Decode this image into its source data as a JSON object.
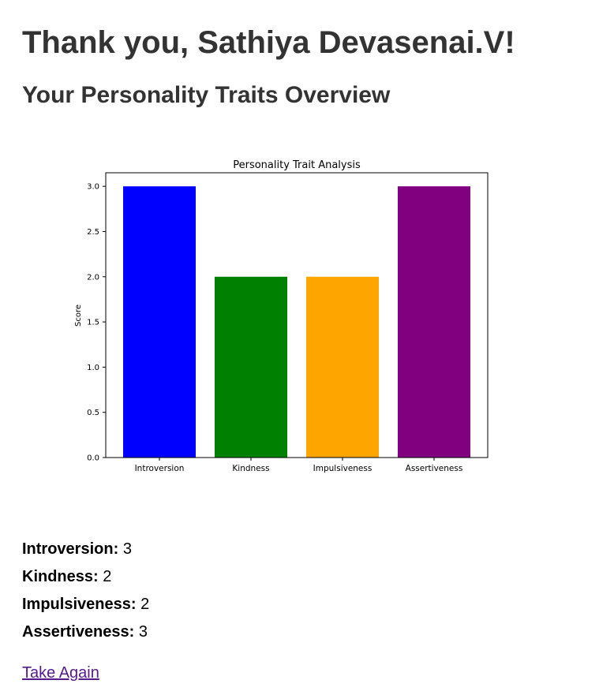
{
  "header": {
    "greeting": "Thank you, Sathiya Devasenai.V!",
    "subtitle": "Your Personality Traits Overview"
  },
  "chart_data": {
    "type": "bar",
    "title": "Personality Trait Analysis",
    "xlabel": "",
    "ylabel": "Score",
    "categories": [
      "Introversion",
      "Kindness",
      "Impulsiveness",
      "Assertiveness"
    ],
    "values": [
      3,
      2,
      2,
      3
    ],
    "colors": [
      "#0000ff",
      "#008000",
      "#ffa500",
      "#800080"
    ],
    "ylim": [
      0,
      3.15
    ],
    "yticks": [
      "0.0",
      "0.5",
      "1.0",
      "1.5",
      "2.0",
      "2.5",
      "3.0"
    ],
    "grid": false,
    "legend": "none"
  },
  "scores": [
    {
      "label": "Introversion:",
      "value": "3"
    },
    {
      "label": "Kindness:",
      "value": "2"
    },
    {
      "label": "Impulsiveness:",
      "value": "2"
    },
    {
      "label": "Assertiveness:",
      "value": "3"
    }
  ],
  "actions": {
    "take_again_label": "Take Again"
  }
}
